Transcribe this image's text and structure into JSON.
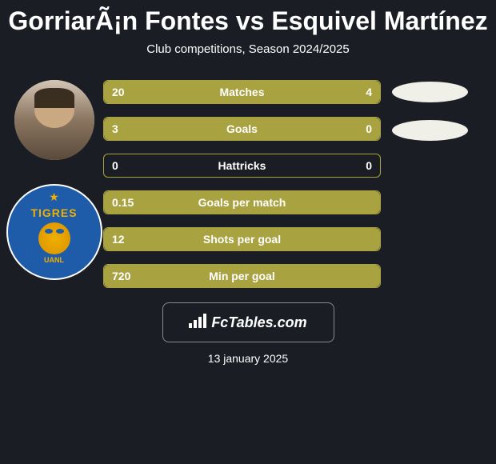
{
  "header": {
    "title": "GorriarÃ¡n Fontes vs Esquivel Martínez",
    "subtitle": "Club competitions, Season 2024/2025"
  },
  "badge": {
    "text": "TIGRES",
    "bottom": "UANL"
  },
  "stats": [
    {
      "label": "Matches",
      "left_value": "20",
      "right_value": "4",
      "left_pct": 83,
      "right_pct": 17,
      "full": false
    },
    {
      "label": "Goals",
      "left_value": "3",
      "right_value": "0",
      "left_pct": 100,
      "right_pct": 0,
      "full": true
    },
    {
      "label": "Hattricks",
      "left_value": "0",
      "right_value": "0",
      "left_pct": 0,
      "right_pct": 0,
      "full": false
    },
    {
      "label": "Goals per match",
      "left_value": "0.15",
      "right_value": "",
      "left_pct": 100,
      "right_pct": 0,
      "full": true
    },
    {
      "label": "Shots per goal",
      "left_value": "12",
      "right_value": "",
      "left_pct": 100,
      "right_pct": 0,
      "full": true
    },
    {
      "label": "Min per goal",
      "left_value": "720",
      "right_value": "",
      "left_pct": 100,
      "right_pct": 0,
      "full": true
    }
  ],
  "footer": {
    "logo_text": "FcTables.com",
    "date": "13 january 2025"
  },
  "colors": {
    "background": "#1a1d24",
    "bar_fill": "#a8a240",
    "bar_border": "#a8a240",
    "text": "#ffffff",
    "badge_blue": "#1e5ba8",
    "badge_gold": "#f0b000",
    "ellipse": "#f0f0e8"
  }
}
